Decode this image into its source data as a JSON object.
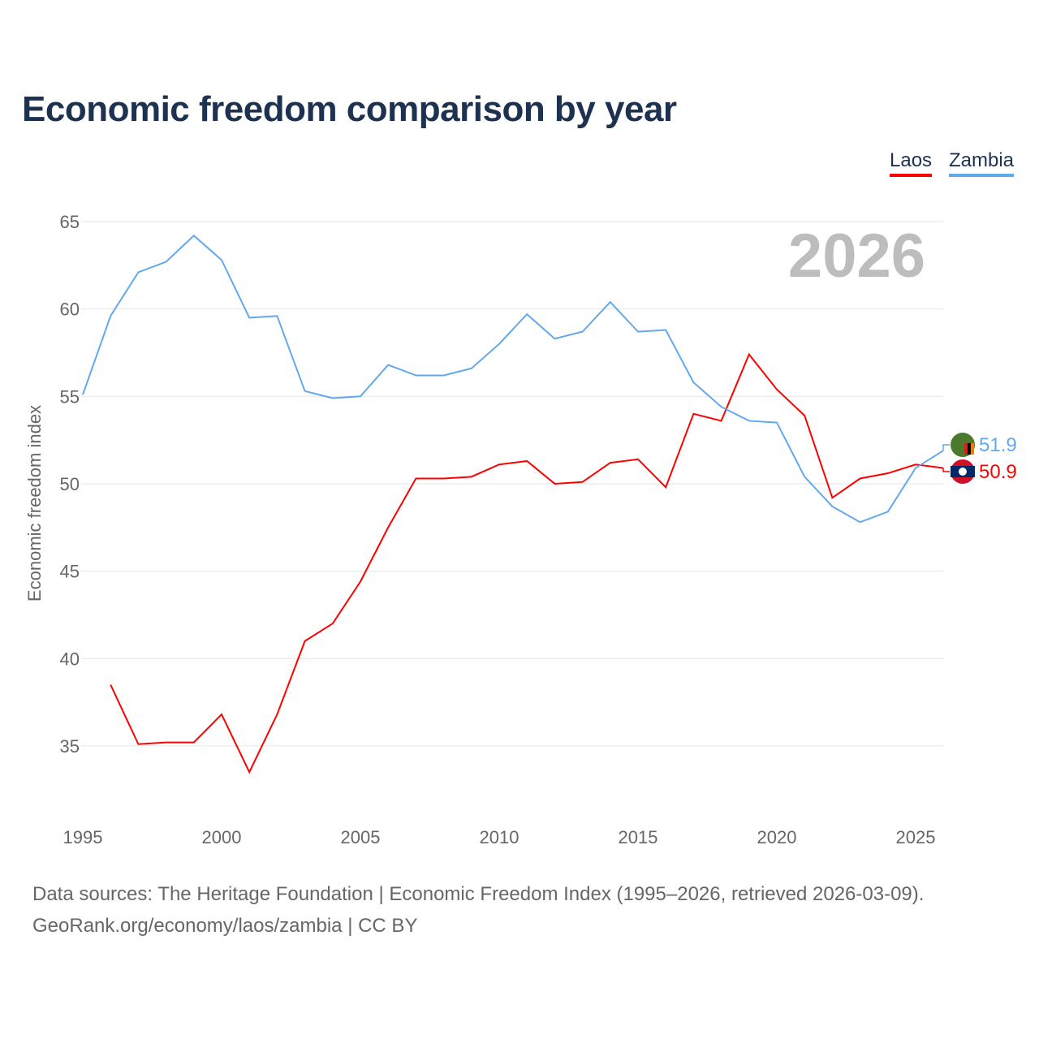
{
  "chart_data": {
    "type": "line",
    "title": "Economic freedom comparison by year",
    "ylabel": "Economic freedom index",
    "xlabel": "",
    "xlim": [
      1995,
      2026
    ],
    "ylim": [
      32,
      65
    ],
    "yticks": [
      35,
      40,
      45,
      50,
      55,
      60,
      65
    ],
    "xticks": [
      1995,
      2000,
      2005,
      2010,
      2015,
      2020,
      2025
    ],
    "watermark_year": "2026",
    "legend_position": "top-right",
    "series": [
      {
        "name": "Laos",
        "color": "#ff0000",
        "end_label": "50.9",
        "x": [
          1996,
          1997,
          1998,
          1999,
          2000,
          2001,
          2002,
          2003,
          2004,
          2005,
          2006,
          2007,
          2008,
          2009,
          2010,
          2011,
          2012,
          2013,
          2014,
          2015,
          2016,
          2017,
          2018,
          2019,
          2020,
          2021,
          2022,
          2023,
          2024,
          2025,
          2026
        ],
        "values": [
          38.5,
          35.1,
          35.2,
          35.2,
          36.8,
          33.5,
          36.8,
          41.0,
          42.0,
          44.4,
          47.5,
          50.3,
          50.3,
          50.4,
          51.1,
          51.3,
          50.0,
          50.1,
          51.2,
          51.4,
          49.8,
          54.0,
          53.6,
          57.4,
          55.4,
          53.9,
          49.2,
          50.3,
          50.6,
          51.1,
          50.9
        ]
      },
      {
        "name": "Zambia",
        "color": "#63a8ea",
        "end_label": "51.9",
        "x": [
          1995,
          1996,
          1997,
          1998,
          1999,
          2000,
          2001,
          2002,
          2003,
          2004,
          2005,
          2006,
          2007,
          2008,
          2009,
          2010,
          2011,
          2012,
          2013,
          2014,
          2015,
          2016,
          2017,
          2018,
          2019,
          2020,
          2021,
          2022,
          2023,
          2024,
          2025,
          2026
        ],
        "values": [
          55.1,
          59.6,
          62.1,
          62.7,
          64.2,
          62.8,
          59.5,
          59.6,
          55.3,
          54.9,
          55.0,
          56.8,
          56.2,
          56.2,
          56.6,
          58.0,
          59.7,
          58.3,
          58.7,
          60.4,
          58.7,
          58.8,
          55.8,
          54.4,
          53.6,
          53.5,
          50.4,
          48.7,
          47.8,
          48.4,
          50.9,
          51.9
        ]
      }
    ]
  },
  "source_line1": "Data sources: The Heritage Foundation | Economic Freedom Index (1995–2026, retrieved 2026-03-09).",
  "source_line2": "GeoRank.org/economy/laos/zambia | CC BY"
}
